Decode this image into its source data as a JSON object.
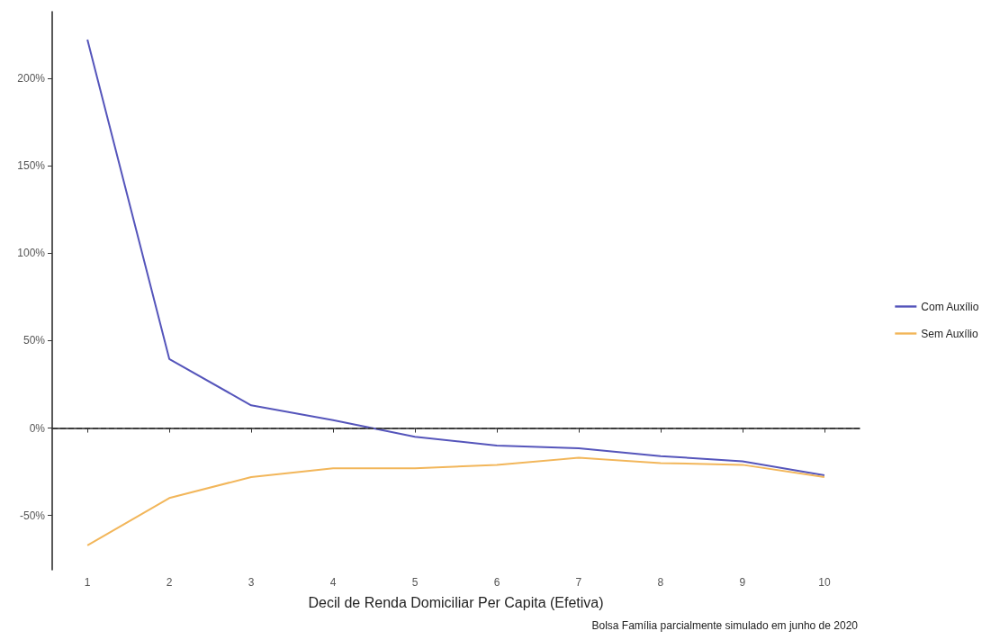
{
  "chart_data": {
    "type": "line",
    "xlabel": "Decil de Renda Domiciliar Per Capita (Efetiva)",
    "x": [
      1,
      2,
      3,
      4,
      5,
      6,
      7,
      8,
      9,
      10
    ],
    "series": [
      {
        "name": "Com Auxílio",
        "color": "#5555bb",
        "values": [
          222,
          39.5,
          13,
          4.5,
          -5,
          -10,
          -11.5,
          -16,
          -19,
          -27
        ]
      },
      {
        "name": "Sem Auxílio",
        "color": "#f2b65a",
        "values": [
          -67,
          -40,
          -28,
          -23,
          -23,
          -21,
          -17,
          -20,
          -21,
          -28
        ]
      }
    ],
    "xlim": [
      0.57,
      10.43
    ],
    "xticks": [
      1,
      2,
      3,
      4,
      5,
      6,
      7,
      8,
      9,
      10
    ],
    "ylim": [
      -81,
      238
    ],
    "yticks": [
      {
        "value": -50,
        "label": "-50%"
      },
      {
        "value": 0,
        "label": "0%"
      },
      {
        "value": 50,
        "label": "50%"
      },
      {
        "value": 100,
        "label": "100%"
      },
      {
        "value": 150,
        "label": "150%"
      },
      {
        "value": 200,
        "label": "200%"
      }
    ],
    "ref_lines": [
      {
        "axis": "y",
        "value": 0,
        "line_style": "dashed",
        "color": "#333333"
      }
    ],
    "grid": false,
    "legend": "right",
    "marker": "none",
    "line_style": "solid",
    "annotations": [
      "Bolsa Família parcialmente simulado em junho de 2020"
    ]
  }
}
